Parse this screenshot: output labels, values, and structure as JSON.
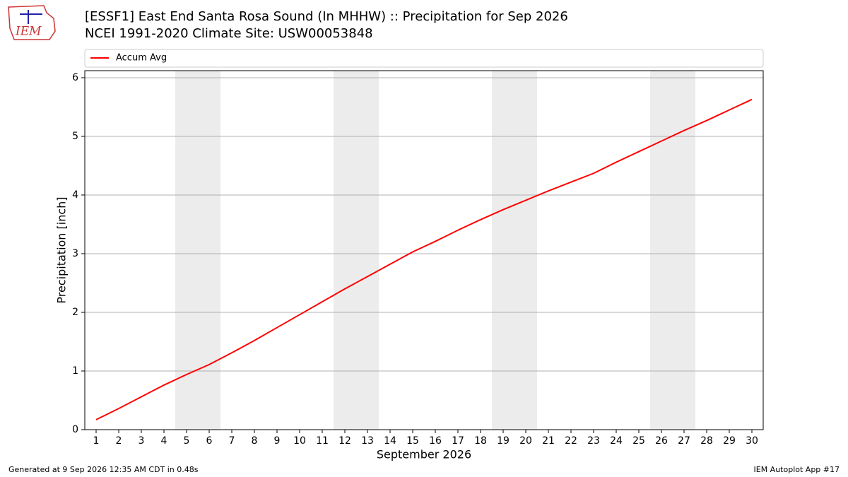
{
  "logo": "IEM",
  "footer": {
    "left": "Generated at 9 Sep 2026 12:35 AM CDT in 0.48s",
    "right": "IEM Autoplot App #17"
  },
  "chart_data": {
    "type": "line",
    "title": "[ESSF1] East End Santa Rosa Sound (In MHHW) :: Precipitation for Sep 2026",
    "subtitle": "NCEI 1991-2020 Climate Site: USW00053848",
    "x_label": "September 2026",
    "y_label": "Precipitation [inch]",
    "x": [
      1,
      2,
      3,
      4,
      5,
      6,
      7,
      8,
      9,
      10,
      11,
      12,
      13,
      14,
      15,
      16,
      17,
      18,
      19,
      20,
      21,
      22,
      23,
      24,
      25,
      26,
      27,
      28,
      29,
      30
    ],
    "series": [
      {
        "name": "Accum Avg",
        "color": "#ff0000",
        "values": [
          0.17,
          0.36,
          0.56,
          0.76,
          0.94,
          1.11,
          1.31,
          1.52,
          1.74,
          1.96,
          2.18,
          2.4,
          2.61,
          2.82,
          3.03,
          3.21,
          3.4,
          3.58,
          3.75,
          3.91,
          4.07,
          4.22,
          4.37,
          4.56,
          4.74,
          4.92,
          5.1,
          5.27,
          5.45,
          5.63
        ]
      }
    ],
    "shaded_spans": [
      [
        4.5,
        6.5
      ],
      [
        11.5,
        13.5
      ],
      [
        18.5,
        20.5
      ],
      [
        25.5,
        27.5
      ]
    ],
    "shade_color": "#ececec",
    "xlim": [
      0.5,
      30.5
    ],
    "ylim": [
      0,
      6.12
    ],
    "xticks": [
      1,
      2,
      3,
      4,
      5,
      6,
      7,
      8,
      9,
      10,
      11,
      12,
      13,
      14,
      15,
      16,
      17,
      18,
      19,
      20,
      21,
      22,
      23,
      24,
      25,
      26,
      27,
      28,
      29,
      30
    ],
    "yticks": [
      0,
      1,
      2,
      3,
      4,
      5,
      6
    ],
    "grid": true,
    "legend": "top"
  }
}
